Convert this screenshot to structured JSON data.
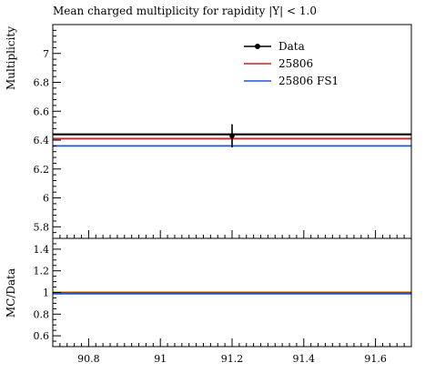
{
  "chart_data": {
    "type": "line",
    "title": "Mean charged multiplicity for rapidity |Y| < 1.0",
    "x_range": [
      90.7,
      91.7
    ],
    "x_ticks": [
      90.8,
      91.0,
      91.2,
      91.4,
      91.6
    ],
    "x_tick_labels": [
      "90.8",
      "91",
      "91.2",
      "91.4",
      "91.6"
    ],
    "main": {
      "ylabel": "Multiplicity",
      "ylim": [
        5.72,
        7.2
      ],
      "y_ticks": [
        5.8,
        6.0,
        6.2,
        6.4,
        6.6,
        6.8,
        7.0
      ],
      "y_tick_labels": [
        "5.8",
        "6",
        "6.2",
        "6.4",
        "6.6",
        "6.8",
        "7"
      ],
      "data": {
        "name": "Data",
        "x": 91.2,
        "y": 6.43,
        "err": 0.08,
        "color": "#000000",
        "band": 6.44
      },
      "series": [
        {
          "name": "25806",
          "y": 6.41,
          "color": "#cc2222"
        },
        {
          "name": "25806 FS1",
          "y": 6.36,
          "color": "#2255dd"
        }
      ]
    },
    "ratio": {
      "ylabel": "MC/Data",
      "ylim": [
        0.5,
        1.5
      ],
      "y_ticks": [
        0.6,
        0.8,
        1.0,
        1.2,
        1.4
      ],
      "y_tick_labels": [
        "0.6",
        "0.8",
        "1",
        "1.2",
        "1.4"
      ],
      "band": {
        "y": 1.0,
        "half_width": 0.012,
        "color": "#f2e600"
      },
      "series": [
        {
          "name": "25806",
          "y": 0.997,
          "color": "#cc2222"
        },
        {
          "name": "25806 FS1",
          "y": 0.989,
          "color": "#2255dd"
        }
      ]
    },
    "legend": {
      "placement": "top-right"
    }
  }
}
